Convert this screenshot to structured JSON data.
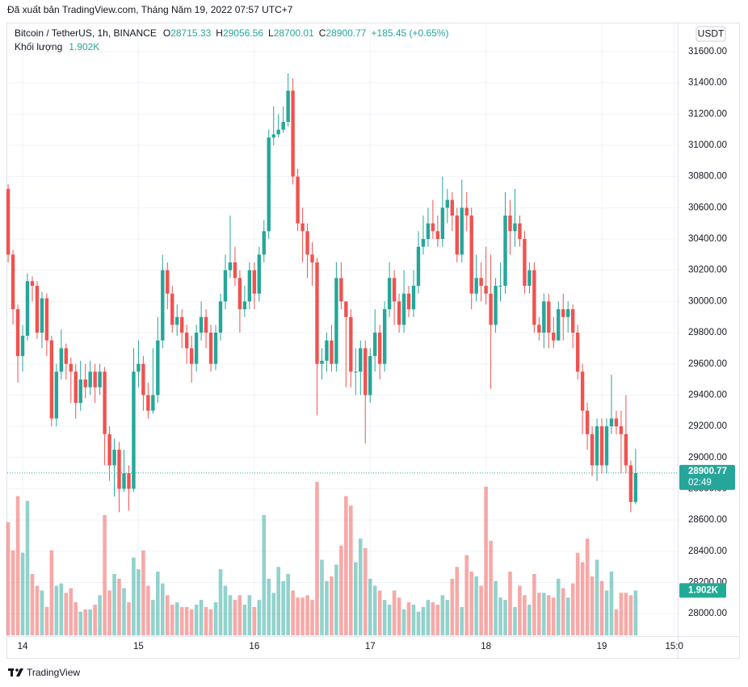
{
  "chart_data": {
    "type": "candlestick",
    "published": "Đã xuất bản TradingView.com, Tháng Năm 19, 2022 07:57 UTC+7",
    "symbol": "Bitcoin / TetherUS, 1h, BINANCE",
    "ohlc_labels": [
      "O",
      "H",
      "L",
      "C"
    ],
    "change_label": "+185.45 (+0.65%)",
    "volume_title": "Khối lượng",
    "volume_label": "1.902K",
    "currency_button": "USDT",
    "countdown": "02:49",
    "brand": "TradingView",
    "up_color": "#26a69a",
    "down_color": "#ef5350",
    "grid": true,
    "open": [
      30720,
      30300,
      29950,
      29650,
      29780,
      30130,
      30100,
      29800,
      30020,
      29750,
      29250,
      29550,
      29700,
      29600,
      29550,
      29350,
      29500,
      29450,
      29550,
      29450,
      29550,
      29150,
      28950,
      29050,
      28800,
      28900,
      28800,
      29550,
      29600,
      29400,
      29300,
      29400,
      29750,
      30200,
      30050,
      29850,
      29900,
      29800,
      29700,
      29600,
      29800,
      29900,
      29800,
      29600,
      29800,
      30000,
      30200,
      30250,
      30150,
      29950,
      30000,
      30200,
      30050,
      30300,
      30450,
      31050,
      31070,
      31100,
      31150,
      31350,
      30800,
      30500,
      30450,
      30300,
      30250,
      29600,
      29620,
      29750,
      29600,
      30150,
      30000,
      29900,
      29550,
      29550,
      29700,
      29400,
      29650,
      29800,
      29600,
      29950,
      30150,
      30000,
      29850,
      30050,
      29950,
      30100,
      30350,
      30400,
      30500,
      30450,
      30400,
      30600,
      30650,
      30550,
      30300,
      30600,
      30550,
      30050,
      30150,
      30100,
      30050,
      29850,
      30100,
      30100,
      30550,
      30450,
      30500,
      30400,
      30100,
      30200,
      29850,
      29800,
      30000,
      29800,
      29750,
      29950,
      29900,
      29950,
      29800,
      29550,
      29300,
      29150,
      28950,
      29200,
      28950,
      29200,
      29250,
      29200,
      29150,
      28950,
      28715.33
    ],
    "high": [
      30750,
      30330,
      29980,
      29850,
      30180,
      30160,
      30130,
      30060,
      30050,
      29780,
      29600,
      29820,
      29730,
      29640,
      29600,
      29620,
      29600,
      29620,
      29600,
      29600,
      29580,
      29200,
      29120,
      29100,
      29050,
      28950,
      29700,
      29750,
      29650,
      29480,
      29700,
      29900,
      30300,
      30250,
      30100,
      29980,
      29950,
      29850,
      29780,
      29850,
      30000,
      29950,
      29850,
      29850,
      30050,
      30300,
      30550,
      30350,
      30200,
      30100,
      30250,
      30250,
      30350,
      30520,
      31100,
      31250,
      31200,
      31250,
      31460,
      31430,
      30850,
      30600,
      30500,
      30380,
      30280,
      29700,
      29800,
      29850,
      30250,
      30250,
      30000,
      29950,
      29700,
      29750,
      29750,
      29700,
      29950,
      29850,
      30000,
      30250,
      30200,
      30050,
      30200,
      30100,
      30200,
      30450,
      30550,
      30600,
      30650,
      30550,
      30800,
      30720,
      30700,
      30600,
      30780,
      30700,
      30600,
      30300,
      30250,
      30350,
      30300,
      30150,
      30250,
      30700,
      30650,
      30720,
      30550,
      30450,
      30250,
      30250,
      29900,
      30050,
      30050,
      29900,
      30000,
      30050,
      30000,
      29980,
      29850,
      29600,
      29350,
      29200,
      29250,
      29250,
      29250,
      29530,
      29300,
      29300,
      29400,
      28980,
      29056.56
    ],
    "low": [
      30250,
      29850,
      29480,
      29550,
      29750,
      30000,
      29760,
      29700,
      29650,
      29200,
      29200,
      29500,
      29500,
      29350,
      29250,
      29300,
      29380,
      29400,
      29350,
      29400,
      28950,
      28850,
      28750,
      28650,
      28780,
      28660,
      28780,
      29450,
      29300,
      29250,
      29280,
      29350,
      29700,
      29950,
      29800,
      29780,
      29700,
      29600,
      29480,
      29550,
      29750,
      29700,
      29550,
      29560,
      29750,
      29950,
      30150,
      30100,
      29800,
      29900,
      29950,
      29950,
      30000,
      30250,
      30400,
      31000,
      31050,
      31080,
      31120,
      30750,
      30450,
      30250,
      30150,
      30100,
      29270,
      29500,
      29550,
      29550,
      29550,
      29950,
      29450,
      29450,
      29400,
      29400,
      29090,
      29350,
      29550,
      29500,
      29550,
      29900,
      29850,
      29800,
      29800,
      29900,
      29900,
      30050,
      30300,
      30350,
      30400,
      30350,
      30350,
      30500,
      30450,
      30250,
      30250,
      30450,
      29950,
      30000,
      30000,
      29980,
      29440,
      29800,
      30000,
      30050,
      30300,
      30350,
      30350,
      30050,
      30050,
      29800,
      29750,
      29700,
      29700,
      29700,
      29750,
      29750,
      29800,
      29700,
      29500,
      29150,
      29050,
      28880,
      28850,
      28900,
      28900,
      29150,
      29150,
      28900,
      28900,
      28650,
      28700.01
    ],
    "close": [
      30300,
      29950,
      29650,
      29780,
      30130,
      30100,
      29800,
      30020,
      29750,
      29250,
      29550,
      29700,
      29600,
      29550,
      29350,
      29500,
      29450,
      29550,
      29450,
      29550,
      29150,
      28950,
      29050,
      28800,
      28900,
      28800,
      29550,
      29600,
      29400,
      29300,
      29400,
      29750,
      30200,
      30050,
      29850,
      29900,
      29800,
      29700,
      29600,
      29800,
      29900,
      29800,
      29600,
      29800,
      30000,
      30200,
      30250,
      30150,
      29950,
      30000,
      30200,
      30050,
      30300,
      30450,
      31050,
      31070,
      31100,
      31150,
      31350,
      30800,
      30500,
      30450,
      30300,
      30250,
      29600,
      29620,
      29750,
      29600,
      30150,
      30000,
      29900,
      29550,
      29550,
      29700,
      29400,
      29650,
      29800,
      29600,
      29950,
      30150,
      30000,
      29850,
      30050,
      29950,
      30100,
      30350,
      30400,
      30500,
      30450,
      30400,
      30600,
      30650,
      30550,
      30300,
      30600,
      30550,
      30050,
      30150,
      30100,
      30050,
      29850,
      30100,
      30100,
      30550,
      30450,
      30500,
      30400,
      30100,
      30200,
      29850,
      29800,
      30000,
      29800,
      29750,
      29950,
      29900,
      29950,
      29800,
      29550,
      29300,
      29150,
      28950,
      29200,
      28950,
      29200,
      29250,
      29200,
      29150,
      28950,
      28715.33,
      28900.77
    ],
    "volume": [
      4800,
      3600,
      5900,
      3500,
      5700,
      2600,
      2100,
      1900,
      1200,
      3600,
      2100,
      2200,
      1800,
      2000,
      1400,
      1000,
      1100,
      1100,
      1300,
      1700,
      5100,
      1900,
      2600,
      2400,
      2000,
      1400,
      3300,
      2800,
      3600,
      2100,
      1500,
      2700,
      2200,
      1700,
      1300,
      1400,
      1200,
      1200,
      1100,
      1300,
      1500,
      1200,
      1100,
      1400,
      2800,
      2100,
      1700,
      1500,
      1700,
      1300,
      1700,
      1200,
      1500,
      5100,
      2400,
      1800,
      2900,
      2300,
      2600,
      1900,
      1600,
      1600,
      1700,
      1500,
      6500,
      3200,
      2300,
      2500,
      3000,
      3800,
      5900,
      5500,
      3100,
      4100,
      3700,
      2400,
      2100,
      1900,
      1500,
      1300,
      1900,
      1600,
      1100,
      1400,
      1300,
      1000,
      1200,
      1500,
      1400,
      1300,
      1700,
      1500,
      2400,
      2900,
      1200,
      3400,
      2700,
      2500,
      2100,
      6300,
      4000,
      2300,
      1600,
      1500,
      2700,
      1200,
      2100,
      1700,
      1300,
      2600,
      1800,
      1800,
      1700,
      1600,
      2400,
      2000,
      1600,
      2200,
      3500,
      3100,
      4100,
      2500,
      3200,
      2300,
      1900,
      2700,
      1100,
      1800,
      1800,
      1700,
      1902
    ],
    "xticks": [
      {
        "value": 3,
        "label": "14"
      },
      {
        "value": 27,
        "label": "15"
      },
      {
        "value": 51,
        "label": "16"
      },
      {
        "value": 75,
        "label": "17"
      },
      {
        "value": 99,
        "label": "18"
      },
      {
        "value": 123,
        "label": "19"
      },
      {
        "value": 138,
        "label": "15:0"
      }
    ],
    "ylim": [
      27861,
      31786
    ],
    "yticks": [
      {
        "value": 28000,
        "label": "28000.00"
      },
      {
        "value": 28200,
        "label": "28200.00"
      },
      {
        "value": 28400,
        "label": "28400.00"
      },
      {
        "value": 28600,
        "label": "28600.00"
      },
      {
        "value": 28800,
        "label": "28800.00"
      },
      {
        "value": 29000,
        "label": "29000.00"
      },
      {
        "value": 29200,
        "label": "29200.00"
      },
      {
        "value": 29400,
        "label": "29400.00"
      },
      {
        "value": 29600,
        "label": "29600.00"
      },
      {
        "value": 29800,
        "label": "29800.00"
      },
      {
        "value": 30000,
        "label": "30000.00"
      },
      {
        "value": 30200,
        "label": "30200.00"
      },
      {
        "value": 30400,
        "label": "30400.00"
      },
      {
        "value": 30600,
        "label": "30600.00"
      },
      {
        "value": 30800,
        "label": "30800.00"
      },
      {
        "value": 31000,
        "label": "31000.00"
      },
      {
        "value": 31200,
        "label": "31200.00"
      },
      {
        "value": 31400,
        "label": "31400.00"
      },
      {
        "value": 31600,
        "label": "31600.00"
      }
    ]
  }
}
